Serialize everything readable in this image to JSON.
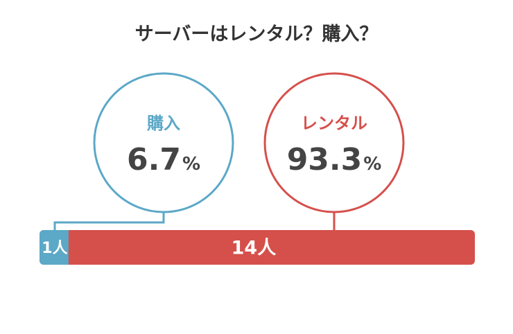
{
  "chart_data": {
    "type": "bar",
    "title": "サーバーはレンタル？購入？",
    "categories": [
      "購入",
      "レンタル"
    ],
    "percent_values": [
      "6.7",
      "93.3"
    ],
    "percent_sign": "%",
    "count_labels": [
      "1人",
      "14人"
    ],
    "values": [
      1,
      14
    ],
    "colors": [
      "#5ba8c7",
      "#d5504b"
    ],
    "stacked": true,
    "orientation": "horizontal"
  }
}
